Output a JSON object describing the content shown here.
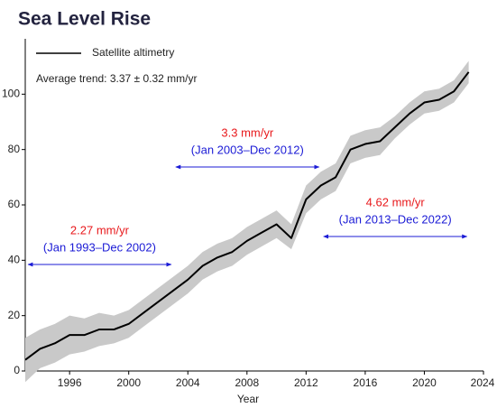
{
  "chart_data": {
    "type": "line",
    "title": "Sea Level Rise",
    "xlabel": "Year",
    "legend_label": "Satellite altimetry",
    "subtitle": "Average trend: 3.37 ± 0.32 mm/yr",
    "x": [
      1993,
      1994,
      1995,
      1996,
      1997,
      1998,
      1999,
      2000,
      2001,
      2002,
      2003,
      2004,
      2005,
      2006,
      2007,
      2008,
      2009,
      2010,
      2011,
      2012,
      2013,
      2014,
      2015,
      2016,
      2017,
      2018,
      2019,
      2020,
      2021,
      2022,
      2023
    ],
    "series": [
      {
        "name": "Satellite altimetry",
        "color": "#000000",
        "values": [
          4,
          8,
          10,
          13,
          13,
          15,
          15,
          17,
          21,
          25,
          29,
          33,
          38,
          41,
          43,
          47,
          50,
          53,
          48,
          62,
          67,
          70,
          80,
          82,
          83,
          88,
          93,
          97,
          98,
          101,
          108
        ],
        "band_lower": [
          -4,
          1,
          3,
          6,
          7,
          9,
          10,
          12,
          16,
          20,
          24,
          28,
          33,
          36,
          38,
          42,
          45,
          48,
          44,
          57,
          62,
          65,
          75,
          77,
          78,
          84,
          89,
          93,
          94,
          97,
          104
        ],
        "band_upper": [
          12,
          15,
          17,
          20,
          19,
          21,
          20,
          22,
          26,
          30,
          34,
          38,
          43,
          46,
          48,
          52,
          55,
          58,
          53,
          67,
          72,
          75,
          85,
          87,
          88,
          92,
          97,
          101,
          102,
          105,
          112
        ],
        "band_color": "#c9c9c9"
      }
    ],
    "annotations": [
      {
        "rate": "2.27 mm/yr",
        "period": "(Jan 1993–Dec 2002)",
        "span": [
          1993,
          2003
        ]
      },
      {
        "rate": "3.3 mm/yr",
        "period": "(Jan 2003–Dec 2012)",
        "span": [
          2003,
          2013
        ]
      },
      {
        "rate": "4.62 mm/yr",
        "period": "(Jan 2013–Dec 2022)",
        "span": [
          2013,
          2023
        ]
      }
    ],
    "xlim": [
      1993,
      2024
    ],
    "xticks": [
      1996,
      2000,
      2004,
      2008,
      2012,
      2016,
      2020,
      2024
    ],
    "ylim": [
      0,
      120
    ],
    "yticks": [
      0,
      20,
      40,
      60,
      80,
      100
    ],
    "grid": false
  }
}
